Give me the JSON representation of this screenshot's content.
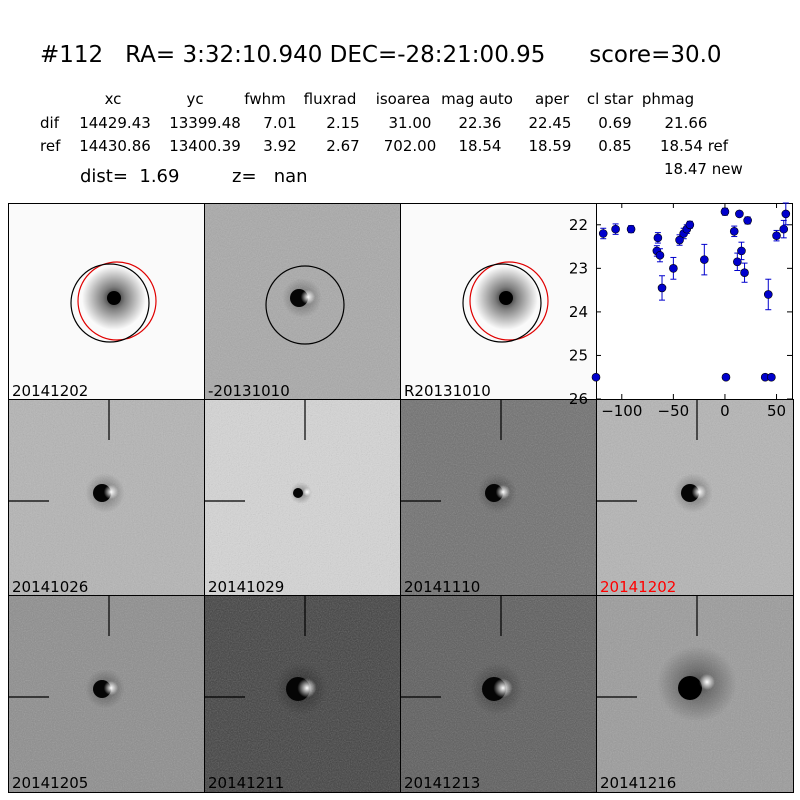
{
  "header": {
    "title": "#112   RA= 3:32:10.940 DEC=-28:21:00.95      score=30.0",
    "columns": [
      "xc",
      "yc",
      "fwhm",
      "fluxrad",
      "isoarea",
      "mag auto",
      "aper",
      "cl star",
      "phmag"
    ],
    "rows": [
      {
        "label": "dif",
        "values": [
          "14429.43",
          "13399.48",
          "7.01",
          "2.15",
          "31.00",
          "22.36",
          "22.45",
          "0.69",
          "21.66"
        ]
      },
      {
        "label": "ref",
        "values": [
          "14430.86",
          "13400.39",
          "3.92",
          "2.67",
          "702.00",
          "18.54",
          "18.59",
          "0.85",
          "18.54 ref"
        ]
      }
    ],
    "phmag_new": "18.47 new",
    "dist": "dist=  1.69",
    "z": "z=   nan"
  },
  "colors": {
    "highlight_label": "#ff0000",
    "point": "#0000cc",
    "circle_red": "#e00000",
    "circle_black": "#000000"
  },
  "panels": [
    {
      "label": "20141202",
      "style": "ref",
      "circles": "both"
    },
    {
      "label": "-20131010",
      "style": "diff",
      "circles": "black"
    },
    {
      "label": "R20131010",
      "style": "ref",
      "circles": "both"
    },
    {
      "label": "20141026",
      "style": "stamp_light"
    },
    {
      "label": "20141029",
      "style": "stamp_pale"
    },
    {
      "label": "20141110",
      "style": "stamp_dark"
    },
    {
      "label": "20141202",
      "style": "stamp_light",
      "highlight": true
    },
    {
      "label": "20141205",
      "style": "stamp_mid"
    },
    {
      "label": "20141211",
      "style": "stamp_verydark"
    },
    {
      "label": "20141213",
      "style": "stamp_dark2"
    },
    {
      "label": "20141216",
      "style": "stamp_blob"
    }
  ],
  "chart_data": {
    "type": "scatter",
    "xlim": [
      -125,
      65
    ],
    "ylim": [
      26,
      21.5
    ],
    "y_inverted": true,
    "xticks": [
      -100,
      -50,
      0,
      50
    ],
    "yticks": [
      22,
      23,
      24,
      25,
      26
    ],
    "points": [
      {
        "x": -125,
        "y": 25.5,
        "err": 0
      },
      {
        "x": -118,
        "y": 22.2,
        "err": 0.12
      },
      {
        "x": -106,
        "y": 22.1,
        "err": 0.12
      },
      {
        "x": -91,
        "y": 22.1,
        "err": 0.08
      },
      {
        "x": -66,
        "y": 22.6,
        "err": 0.12
      },
      {
        "x": -65,
        "y": 22.3,
        "err": 0.12
      },
      {
        "x": -63,
        "y": 22.7,
        "err": 0.15
      },
      {
        "x": -61,
        "y": 23.45,
        "err": 0.28
      },
      {
        "x": -50,
        "y": 23.0,
        "err": 0.25
      },
      {
        "x": -44,
        "y": 22.35,
        "err": 0.12
      },
      {
        "x": -40,
        "y": 22.2,
        "err": 0.12
      },
      {
        "x": -37,
        "y": 22.1,
        "err": 0.1
      },
      {
        "x": -34,
        "y": 22.0,
        "err": 0.08
      },
      {
        "x": -20,
        "y": 22.8,
        "err": 0.35
      },
      {
        "x": 0,
        "y": 21.7,
        "err": 0.08
      },
      {
        "x": 1,
        "y": 25.5,
        "err": 0
      },
      {
        "x": 9,
        "y": 22.15,
        "err": 0.12
      },
      {
        "x": 12,
        "y": 22.85,
        "err": 0.2
      },
      {
        "x": 14,
        "y": 21.75,
        "err": 0.06
      },
      {
        "x": 16,
        "y": 22.6,
        "err": 0.2
      },
      {
        "x": 19,
        "y": 23.1,
        "err": 0.22
      },
      {
        "x": 22,
        "y": 21.9,
        "err": 0.08
      },
      {
        "x": 39,
        "y": 25.5,
        "err": 0
      },
      {
        "x": 42,
        "y": 23.6,
        "err": 0.35
      },
      {
        "x": 45,
        "y": 25.5,
        "err": 0
      },
      {
        "x": 50,
        "y": 22.25,
        "err": 0.12
      },
      {
        "x": 57,
        "y": 22.1,
        "err": 0.2
      },
      {
        "x": 59,
        "y": 21.75,
        "err": 0.25
      }
    ]
  }
}
